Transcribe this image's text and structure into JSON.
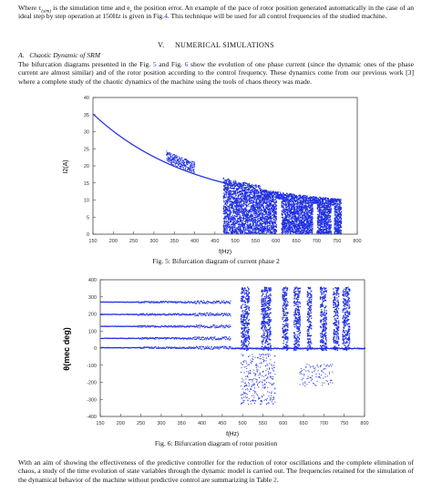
{
  "intro": {
    "where": "Where τ",
    "sub": "(sim)",
    "mid": " is the simulation time and e",
    "sub2": "r",
    "rest": " the position error. An example of the pace of rotor position generated automatically in the case of an ideal step by step operation at 150Hz is given in Fig.",
    "ref": "4",
    "end": ". This technique will be used for all control frequencies of the studied machine."
  },
  "section": {
    "number": "V.",
    "title": "NUMERICAL SIMULATIONS",
    "sub_letter": "A.",
    "sub_title": "Chaotic Dynamic of SRM"
  },
  "para1": {
    "t1": "The bifurcation diagrams presented in the Fig. ",
    "r1": "5",
    "t2": " and Fig. ",
    "r2": "6",
    "t3": " show the evolution of one phase current (since the dynamic ones of the phase current are almost similar) and of the rotor position according to the control frequency. These dynamics come from our previous work [3] where a complete study of the chaotic dynamics of the machine using the tools of chaos theory was made."
  },
  "fig5": {
    "caption": "Fig. 5: Bifurcation diagram of current phase 2",
    "xlabel": "f(Hz)",
    "ylabel": "I2(A)",
    "xticks": [
      "150",
      "200",
      "250",
      "300",
      "350",
      "400",
      "450",
      "500",
      "550",
      "600",
      "650",
      "700",
      "750",
      "800"
    ],
    "yticks": [
      "0",
      "5",
      "10",
      "15",
      "20",
      "25",
      "30",
      "35",
      "40"
    ],
    "color": "#1f2fe0"
  },
  "fig6": {
    "caption": "Fig. 6: Bifurcation diagram of rotor position",
    "xlabel": "f(Hz)",
    "ylabel": "θ(mec deg)",
    "xticks": [
      "150",
      "200",
      "250",
      "300",
      "350",
      "400",
      "450",
      "500",
      "550",
      "600",
      "650",
      "700",
      "750",
      "800"
    ],
    "yticks": [
      "400",
      "300",
      "200",
      "100",
      "0",
      "-100",
      "-200",
      "-300",
      "-400"
    ],
    "color": "#1f2fe0"
  },
  "chart_data": [
    {
      "type": "scatter",
      "title": "",
      "xlabel": "f(Hz)",
      "ylabel": "I2(A)",
      "xlim": [
        150,
        800
      ],
      "ylim": [
        0,
        40
      ],
      "series": [
        {
          "x": [
            150,
            200,
            250,
            300,
            350,
            400,
            450,
            480
          ],
          "values": [
            35.2,
            29.5,
            25.3,
            22.0,
            19.6,
            17.4,
            15.2,
            14.0
          ]
        }
      ]
    },
    {
      "type": "scatter",
      "title": "",
      "xlabel": "f(Hz)",
      "ylabel": "θ(mec deg)",
      "xlim": [
        150,
        800
      ],
      "ylim": [
        -400,
        400
      ],
      "series": [
        {
          "x": [
            150,
            200,
            250,
            300,
            350,
            400,
            450
          ],
          "values": [
            272,
            272,
            270,
            268,
            268,
            265,
            262
          ]
        }
      ]
    }
  ],
  "para2": {
    "t1": "With an aim of showing the effectiveness of the predictive controller for the reduction of rotor oscillations and the complete elimination of chaos, a study of the time evolution of state variables through the dynamic model is carried out. The frequencies retained for the simulation of the dynamical behavior of the machine without predictive control are summarizing in Table ",
    "r1": "2",
    "t2": "."
  }
}
